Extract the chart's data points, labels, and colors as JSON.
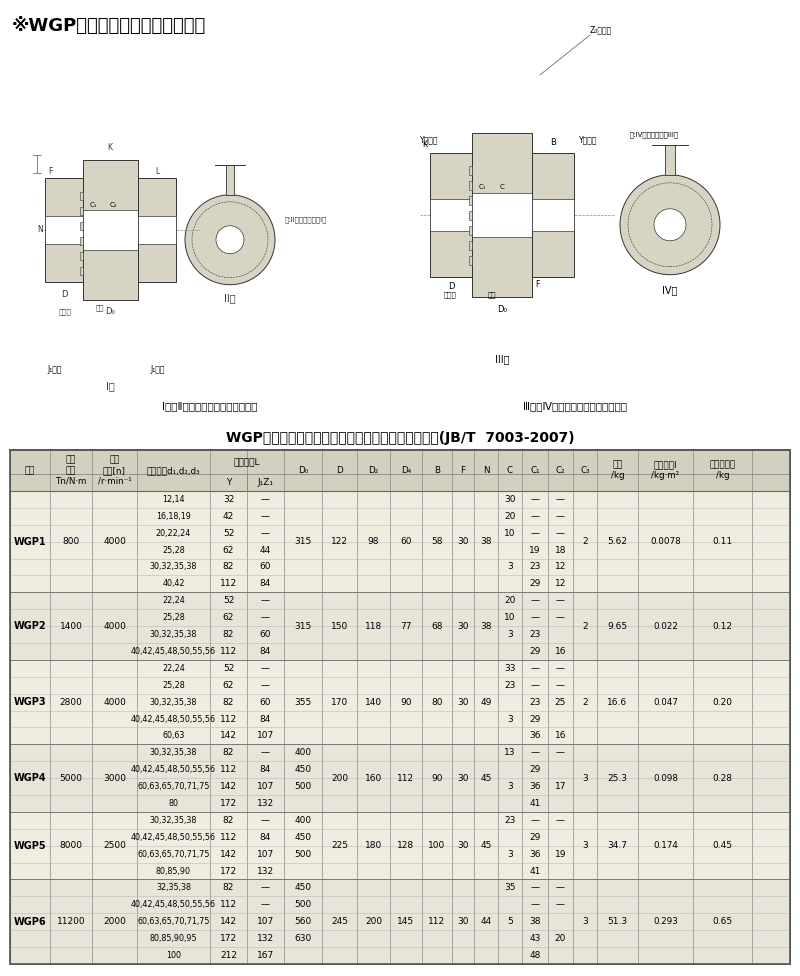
{
  "title_top": "※WGP型带制动盘鼓形齿式联轴器",
  "table_title": "WGP型带制动盘鼓形齿式联轴器基本参数和主要尺寸(JB/T  7003-2007)",
  "diagram_label_left": "Ⅰ型、Ⅱ型带制动盘鼓形齿式联轴器",
  "diagram_label_right": "Ⅲ型、Ⅳ型带制动盘鼓形齿式联轴器",
  "bg_header": "#d4d0c0",
  "bg_row0": "#f0ede0",
  "bg_row1": "#e8e5d8",
  "rows": [
    {
      "model": "WGP1",
      "Tn": "800",
      "n": "4000",
      "D0": "315",
      "D": "122",
      "D2": "98",
      "D4": "60",
      "B": "58",
      "F": "30",
      "N": "38",
      "C3": "2",
      "mass": "5.62",
      "I": "0.0078",
      "grease": "0.11",
      "sub_rows": [
        {
          "d": "12,14",
          "Y": "32",
          "J1Z1": "—",
          "C": "30",
          "C1": "—",
          "C2": "—"
        },
        {
          "d": "16,18,19",
          "Y": "42",
          "J1Z1": "—",
          "C": "20",
          "C1": "—",
          "C2": "—"
        },
        {
          "d": "20,22,24",
          "Y": "52",
          "J1Z1": "—",
          "C": "10",
          "C1": "—",
          "C2": "—"
        },
        {
          "d": "25,28",
          "Y": "62",
          "J1Z1": "44",
          "C": "",
          "C1": "19",
          "C2": "18"
        },
        {
          "d": "30,32,35,38",
          "Y": "82",
          "J1Z1": "60",
          "C": "3",
          "C1": "23",
          "C2": "12"
        },
        {
          "d": "40,42",
          "Y": "112",
          "J1Z1": "84",
          "C": "",
          "C1": "29",
          "C2": "12"
        }
      ]
    },
    {
      "model": "WGP2",
      "Tn": "1400",
      "n": "4000",
      "D0": "315",
      "D": "150",
      "D2": "118",
      "D4": "77",
      "B": "68",
      "F": "30",
      "N": "38",
      "C3": "2",
      "mass": "9.65",
      "I": "0.022",
      "grease": "0.12",
      "sub_rows": [
        {
          "d": "22,24",
          "Y": "52",
          "J1Z1": "—",
          "C": "20",
          "C1": "—",
          "C2": "—"
        },
        {
          "d": "25,28",
          "Y": "62",
          "J1Z1": "—",
          "C": "10",
          "C1": "—",
          "C2": "—"
        },
        {
          "d": "30,32,35,38",
          "Y": "82",
          "J1Z1": "60",
          "C": "3",
          "C1": "23",
          "C2": ""
        },
        {
          "d": "40,42,45,48,50,55,56",
          "Y": "112",
          "J1Z1": "84",
          "C": "",
          "C1": "29",
          "C2": "16"
        }
      ]
    },
    {
      "model": "WGP3",
      "Tn": "2800",
      "n": "4000",
      "D0": "355",
      "D": "170",
      "D2": "140",
      "D4": "90",
      "B": "80",
      "F": "30",
      "N": "49",
      "C3": "2",
      "mass": "16.6",
      "I": "0.047",
      "grease": "0.20",
      "sub_rows": [
        {
          "d": "22,24",
          "Y": "52",
          "J1Z1": "—",
          "C": "33",
          "C1": "—",
          "C2": "—"
        },
        {
          "d": "25,28",
          "Y": "62",
          "J1Z1": "—",
          "C": "23",
          "C1": "—",
          "C2": "—"
        },
        {
          "d": "30,32,35,38",
          "Y": "82",
          "J1Z1": "60",
          "C": "",
          "C1": "23",
          "C2": "25"
        },
        {
          "d": "40,42,45,48,50,55,56",
          "Y": "112",
          "J1Z1": "84",
          "C": "3",
          "C1": "29",
          "C2": ""
        },
        {
          "d": "60,63",
          "Y": "142",
          "J1Z1": "107",
          "C": "",
          "C1": "36",
          "C2": "16"
        }
      ]
    },
    {
      "model": "WGP4",
      "Tn": "5000",
      "n": "3000",
      "D0": "400\n450\n500",
      "D": "200",
      "D2": "160",
      "D4": "112",
      "B": "90",
      "F": "30",
      "N": "45",
      "C3": "3",
      "mass": "25.3",
      "I": "0.098",
      "grease": "0.28",
      "d0_per_row": [
        "400",
        "450",
        "500",
        ""
      ],
      "sub_rows": [
        {
          "d": "30,32,35,38",
          "Y": "82",
          "J1Z1": "—",
          "C": "13",
          "C1": "—",
          "C2": "—"
        },
        {
          "d": "40,42,45,48,50,55,56",
          "Y": "112",
          "J1Z1": "84",
          "C": "",
          "C1": "29",
          "C2": ""
        },
        {
          "d": "60,63,65,70,71,75",
          "Y": "142",
          "J1Z1": "107",
          "C": "3",
          "C1": "36",
          "C2": "17"
        },
        {
          "d": "80",
          "Y": "172",
          "J1Z1": "132",
          "C": "",
          "C1": "41",
          "C2": ""
        }
      ]
    },
    {
      "model": "WGP5",
      "Tn": "8000",
      "n": "2500",
      "D0": "400\n450\n500",
      "D": "225",
      "D2": "180",
      "D4": "128",
      "B": "100",
      "F": "30",
      "N": "45",
      "C3": "3",
      "mass": "34.7",
      "I": "0.174",
      "grease": "0.45",
      "d0_per_row": [
        "400",
        "450",
        "500",
        ""
      ],
      "sub_rows": [
        {
          "d": "30,32,35,38",
          "Y": "82",
          "J1Z1": "—",
          "C": "23",
          "C1": "—",
          "C2": "—"
        },
        {
          "d": "40,42,45,48,50,55,56",
          "Y": "112",
          "J1Z1": "84",
          "C": "",
          "C1": "29",
          "C2": ""
        },
        {
          "d": "60,63,65,70,71,75",
          "Y": "142",
          "J1Z1": "107",
          "C": "3",
          "C1": "36",
          "C2": "19"
        },
        {
          "d": "80,85,90",
          "Y": "172",
          "J1Z1": "132",
          "C": "",
          "C1": "41",
          "C2": ""
        }
      ]
    },
    {
      "model": "WGP6",
      "Tn": "11200",
      "n": "2000",
      "D0": "450\n500\n560\n630",
      "D": "245",
      "D2": "200",
      "D4": "145",
      "B": "112",
      "F": "30",
      "N": "44",
      "C3": "3",
      "mass": "51.3",
      "I": "0.293",
      "grease": "0.65",
      "d0_per_row": [
        "450",
        "500",
        "560",
        "630",
        ""
      ],
      "sub_rows": [
        {
          "d": "32,35,38",
          "Y": "82",
          "J1Z1": "—",
          "C": "35",
          "C1": "—",
          "C2": "—"
        },
        {
          "d": "40,42,45,48,50,55,56",
          "Y": "112",
          "J1Z1": "—",
          "C": "",
          "C1": "—",
          "C2": "—"
        },
        {
          "d": "60,63,65,70,71,75",
          "Y": "142",
          "J1Z1": "107",
          "C": "5",
          "C1": "38",
          "C2": ""
        },
        {
          "d": "80,85,90,95",
          "Y": "172",
          "J1Z1": "132",
          "C": "",
          "C1": "43",
          "C2": "20"
        },
        {
          "d": "100",
          "Y": "212",
          "J1Z1": "167",
          "C": "",
          "C1": "48",
          "C2": ""
        }
      ]
    }
  ]
}
